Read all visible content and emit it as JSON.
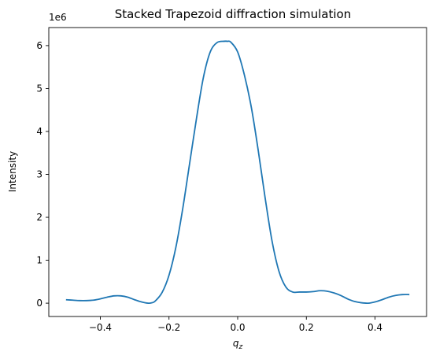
{
  "chart_data": {
    "type": "line",
    "title": "Stacked Trapezoid diffraction simulation",
    "xlabel_main": "q",
    "xlabel_sub": "z",
    "ylabel": "Intensity",
    "y_offset_label": "1e6",
    "xlim": [
      -0.55,
      0.55
    ],
    "ylim": [
      -0.31,
      6.42
    ],
    "y_scale": 1000000,
    "xticks": [
      -0.4,
      -0.2,
      0.0,
      0.2,
      0.4
    ],
    "xtick_labels": [
      "−0.4",
      "−0.2",
      "0.0",
      "0.2",
      "0.4"
    ],
    "yticks": [
      0,
      1,
      2,
      3,
      4,
      5,
      6
    ],
    "ytick_labels": [
      "0",
      "1",
      "2",
      "3",
      "4",
      "5",
      "6"
    ],
    "grid": false,
    "series": [
      {
        "color": "#1f77b4",
        "x": [
          -0.5,
          -0.48,
          -0.46,
          -0.44,
          -0.42,
          -0.4,
          -0.38,
          -0.36,
          -0.34,
          -0.32,
          -0.3,
          -0.28,
          -0.26,
          -0.25,
          -0.24,
          -0.22,
          -0.2,
          -0.18,
          -0.16,
          -0.14,
          -0.12,
          -0.1,
          -0.08,
          -0.06,
          -0.04,
          -0.03,
          -0.02,
          0.0,
          0.02,
          0.04,
          0.06,
          0.08,
          0.1,
          0.12,
          0.14,
          0.16,
          0.18,
          0.2,
          0.22,
          0.24,
          0.26,
          0.28,
          0.3,
          0.32,
          0.34,
          0.36,
          0.38,
          0.4,
          0.42,
          0.44,
          0.46,
          0.48,
          0.5
        ],
        "y": [
          0.08,
          0.07,
          0.06,
          0.06,
          0.07,
          0.1,
          0.14,
          0.17,
          0.17,
          0.14,
          0.08,
          0.03,
          0.0,
          0.01,
          0.05,
          0.25,
          0.65,
          1.3,
          2.2,
          3.25,
          4.3,
          5.25,
          5.85,
          6.07,
          6.1,
          6.1,
          6.08,
          5.85,
          5.3,
          4.55,
          3.55,
          2.45,
          1.45,
          0.75,
          0.38,
          0.26,
          0.26,
          0.26,
          0.27,
          0.29,
          0.28,
          0.24,
          0.18,
          0.1,
          0.04,
          0.01,
          0.0,
          0.03,
          0.08,
          0.14,
          0.18,
          0.2,
          0.2
        ]
      }
    ]
  }
}
